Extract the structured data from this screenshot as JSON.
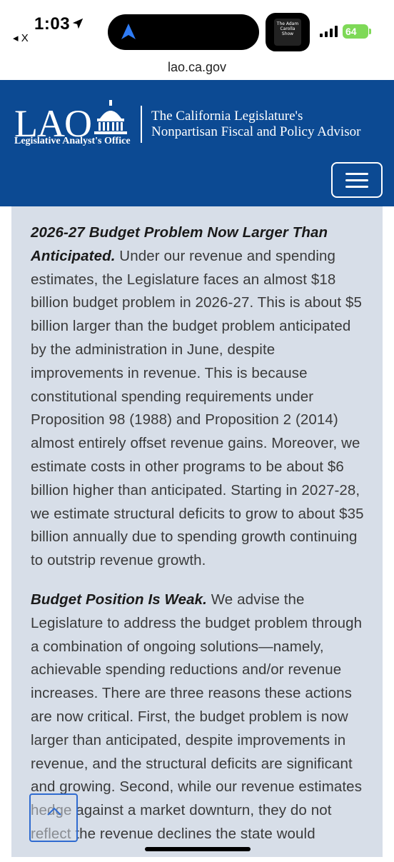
{
  "status_bar": {
    "time": "1:03",
    "back_app": "◂ X",
    "battery": "64",
    "art_text": "The Adam Carolla Show"
  },
  "browser": {
    "url": "lao.ca.gov"
  },
  "header": {
    "logo_word": "LAO",
    "logo_subtitle": "Legislative Analyst's Office",
    "tagline_line1": "The California Legislature's",
    "tagline_line2": "Nonpartisan Fiscal and Policy Advisor",
    "background_color": "#0c4a93"
  },
  "content": {
    "para1_heading": "2026-27 Budget Problem Now Larger Than Anticipated.",
    "para1_body": " Under our revenue and spending estimates, the Legislature faces an almost $18 billion budget problem in 2026-27. This is about $5 billion larger than the budget problem anticipated by the administration in June, despite improvements in revenue. This is because constitutional spending requirements under Proposition 98 (1988) and Proposition 2 (2014) almost entirely offset revenue gains. Moreover, we estimate costs in other programs to be about $6 billion higher than anticipated. Starting in 2027-28, we estimate structural deficits to grow to about $35 billion annually due to spending growth continuing to outstrip revenue growth.",
    "para2_heading": "Budget Position Is Weak.",
    "para2_body": " We advise the Legislature to address the budget problem through a combination of ongoing solutions—namely, achievable spending reductions and/or revenue increases. There are three reasons these actions are now critical. First, the budget problem is now larger than anticipated, despite improvements in revenue, and the structural deficits are significant and growing. Second, while our revenue estimates hedge against a market downturn, they do not reflect the revenue declines the state would"
  },
  "icons": {
    "menu": "hamburger-menu-icon",
    "scroll_top": "chevron-up-icon",
    "location": "location-arrow-icon"
  }
}
